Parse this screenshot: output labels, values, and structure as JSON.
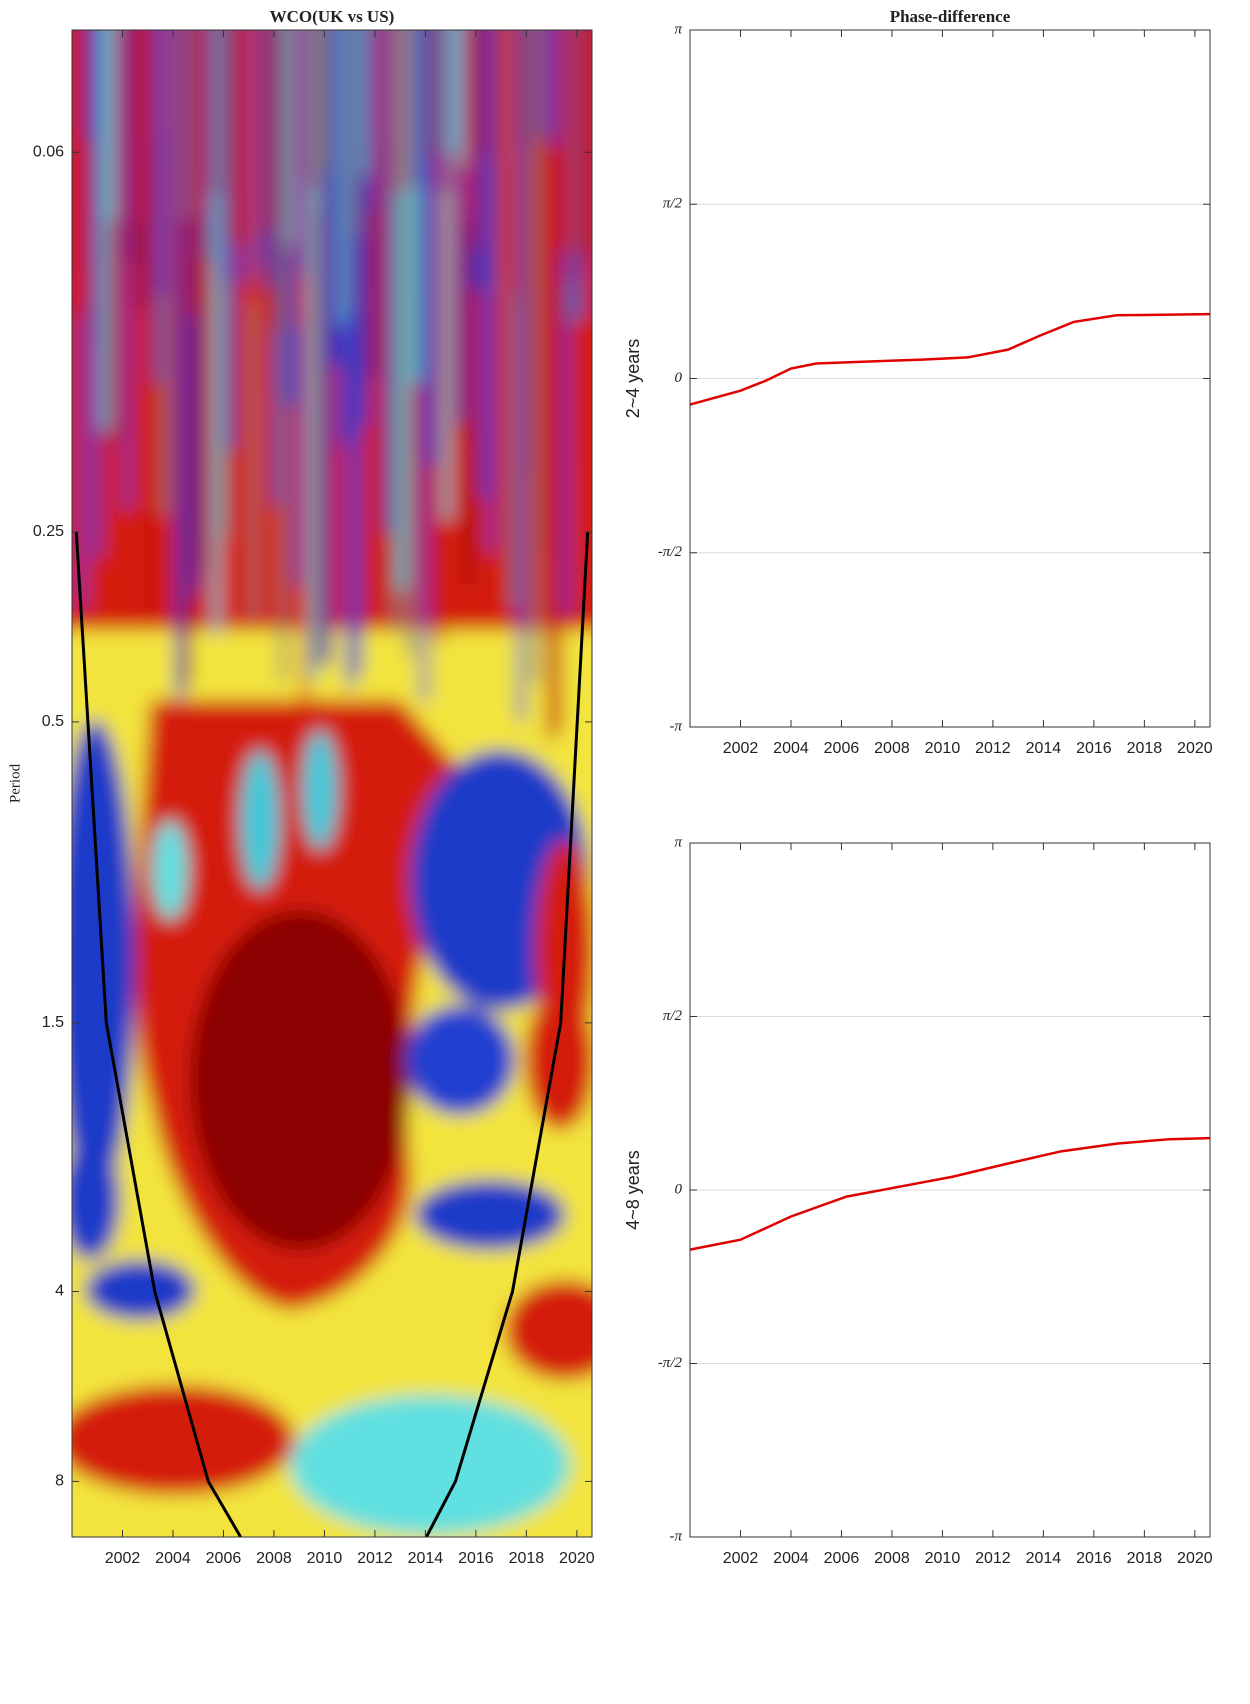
{
  "chart_data": [
    {
      "type": "heatmap",
      "title": "WCO(UK vs US)",
      "y_label": "Period",
      "xlim": [
        2000,
        2020.6
      ],
      "xticks": [
        2002,
        2004,
        2006,
        2008,
        2010,
        2012,
        2014,
        2016,
        2018,
        2020
      ],
      "ylim": [
        0.04,
        9.8
      ],
      "yscale": "log",
      "y_reverse": true,
      "yticks": [
        {
          "value": 0.0625,
          "label": "0.06"
        },
        0.25,
        0.5,
        1.5,
        4,
        8
      ],
      "lines": [
        {
          "color": "#000000",
          "x": [
            2000.17,
            2001.36,
            2003.28,
            2005.4,
            2006.68
          ],
          "y": [
            0.25,
            1.5,
            4,
            8,
            9.8
          ]
        },
        {
          "color": "#000000",
          "x": [
            2014.04,
            2015.19,
            2017.45,
            2019.36,
            2020.43
          ],
          "y": [
            9.8,
            8,
            4,
            1.5,
            0.25
          ]
        }
      ]
    },
    {
      "type": "line",
      "title": "Phase-difference",
      "y_label": "2~4 years",
      "grid": true,
      "xlim": [
        2000,
        2020.6
      ],
      "xticks": [
        2002,
        2004,
        2006,
        2008,
        2010,
        2012,
        2014,
        2016,
        2018,
        2020
      ],
      "ylim": [
        -3.14159,
        3.14159
      ],
      "yticks": [
        {
          "value": -3.14159,
          "label": "-π"
        },
        {
          "value": -1.5708,
          "label": "-π/2"
        },
        0,
        {
          "value": 1.5708,
          "label": "π/2"
        },
        {
          "value": 3.14159,
          "label": "π"
        }
      ],
      "color": "#e00000",
      "x": [
        2000,
        2002,
        2003,
        2004,
        2005,
        2006.7,
        2009.2,
        2011,
        2012.6,
        2013.9,
        2015.2,
        2016.9,
        2020.6
      ],
      "values": [
        -0.235,
        -0.11,
        -0.02,
        0.09,
        0.135,
        0.15,
        0.17,
        0.19,
        0.26,
        0.39,
        0.51,
        0.57,
        0.58
      ]
    },
    {
      "type": "line",
      "y_label": "4~8 years",
      "grid": true,
      "xlim": [
        2000,
        2020.6
      ],
      "xticks": [
        2002,
        2004,
        2006,
        2008,
        2010,
        2012,
        2014,
        2016,
        2018,
        2020
      ],
      "ylim": [
        -3.14159,
        3.14159
      ],
      "yticks": [
        {
          "value": -3.14159,
          "label": "-π"
        },
        {
          "value": -1.5708,
          "label": "-π/2"
        },
        0,
        {
          "value": 1.5708,
          "label": "π/2"
        },
        {
          "value": 3.14159,
          "label": "π"
        }
      ],
      "color": "#e00000",
      "x": [
        2000,
        2002,
        2004,
        2006.2,
        2008.3,
        2010.4,
        2012.6,
        2014.7,
        2016.9,
        2019,
        2020.6
      ],
      "values": [
        -0.54,
        -0.45,
        -0.24,
        -0.06,
        0.03,
        0.12,
        0.24,
        0.35,
        0.42,
        0.46,
        0.47
      ]
    }
  ]
}
